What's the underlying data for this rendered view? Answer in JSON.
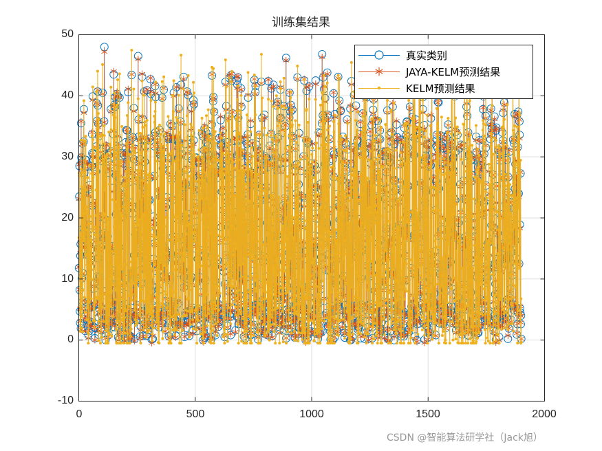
{
  "chart_data": {
    "type": "line",
    "title": "训练集结果",
    "xlabel": "",
    "ylabel": "",
    "xlim": [
      0,
      2000
    ],
    "ylim": [
      -10,
      50
    ],
    "xticks": [
      0,
      500,
      1000,
      1500,
      2000
    ],
    "yticks": [
      -10,
      0,
      10,
      20,
      30,
      40,
      50
    ],
    "grid": true,
    "legend_position": "northeast",
    "n_points": 1900,
    "series": [
      {
        "name": "真实类别",
        "color": "#0072BD",
        "marker": "circle",
        "value_range": [
          0,
          48
        ]
      },
      {
        "name": "JAYA-KELM预测结果",
        "color": "#D95319",
        "marker": "asterisk",
        "value_range": [
          0,
          47.2
        ]
      },
      {
        "name": "KELM预测结果",
        "color": "#EDB120",
        "marker": "dot",
        "value_range": [
          -0.5,
          44
        ]
      }
    ],
    "notable_peaks": [
      {
        "x": 110,
        "true": 48.0,
        "jaya_kelm": 47.2,
        "kelm": 33.5
      },
      {
        "x": 255,
        "true": 46.5,
        "jaya_kelm": 46.0,
        "kelm": 39.5
      },
      {
        "x": 890,
        "true": 46.2,
        "jaya_kelm": 45.8,
        "kelm": 38.0
      },
      {
        "x": 1045,
        "true": 46.8,
        "jaya_kelm": 46.3,
        "kelm": 40.5
      },
      {
        "x": 1900,
        "true": 0.2,
        "jaya_kelm": 0.2,
        "kelm": -0.3
      }
    ]
  },
  "title": "训练集结果",
  "axes": {
    "yticks": [
      "50",
      "40",
      "30",
      "20",
      "10",
      "0",
      "-10"
    ],
    "xticks": [
      "0",
      "500",
      "1000",
      "1500",
      "2000"
    ]
  },
  "legend": {
    "items": [
      {
        "label": "真实类别",
        "color": "#0072BD"
      },
      {
        "label": "JAYA-KELM预测结果",
        "color": "#D95319"
      },
      {
        "label": "KELM预测结果",
        "color": "#EDB120"
      }
    ]
  },
  "watermark": "CSDN @智能算法研学社（Jack旭）"
}
